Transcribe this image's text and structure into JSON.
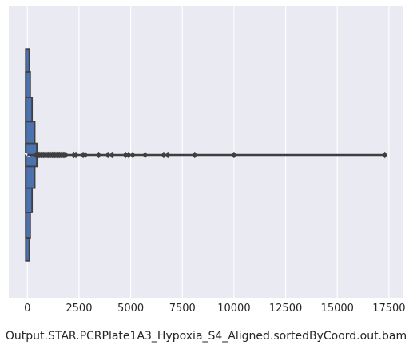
{
  "chart_data": {
    "type": "boxen",
    "xlabel": "Output.STAR.PCRPlate1A3_Hypoxia_S4_Aligned.sortedByCoord.out.bam",
    "ylabel": "",
    "xlim": [
      -900,
      18200
    ],
    "xticks": [
      0,
      2500,
      5000,
      7500,
      10000,
      12500,
      15000,
      17500
    ],
    "xtick_labels": [
      "0",
      "2500",
      "5000",
      "7500",
      "10000",
      "12500",
      "15000",
      "17500"
    ],
    "grid": true,
    "background": "#eaeaf2",
    "box_color": "#4c72b0",
    "line_color": "#3f3f3f",
    "median": 0,
    "letter_values": [
      {
        "low": 0,
        "high": 15,
        "height": 0.83
      },
      {
        "low": 0,
        "high": 60,
        "height": 0.65
      },
      {
        "low": 0,
        "high": 150,
        "height": 0.45
      },
      {
        "low": 0,
        "high": 280,
        "height": 0.26
      },
      {
        "low": 0,
        "high": 380,
        "height": 0.09
      }
    ],
    "whisker": [
      0,
      17300
    ],
    "outliers": [
      420,
      480,
      540,
      600,
      660,
      720,
      780,
      840,
      900,
      960,
      1020,
      1080,
      1140,
      1200,
      1260,
      1320,
      1380,
      1440,
      1500,
      1560,
      1620,
      1680,
      1740,
      1800,
      1860,
      2250,
      2350,
      2700,
      2800,
      3450,
      3900,
      4100,
      4750,
      4900,
      5100,
      5700,
      6600,
      6800,
      8100,
      10000,
      17300
    ]
  }
}
